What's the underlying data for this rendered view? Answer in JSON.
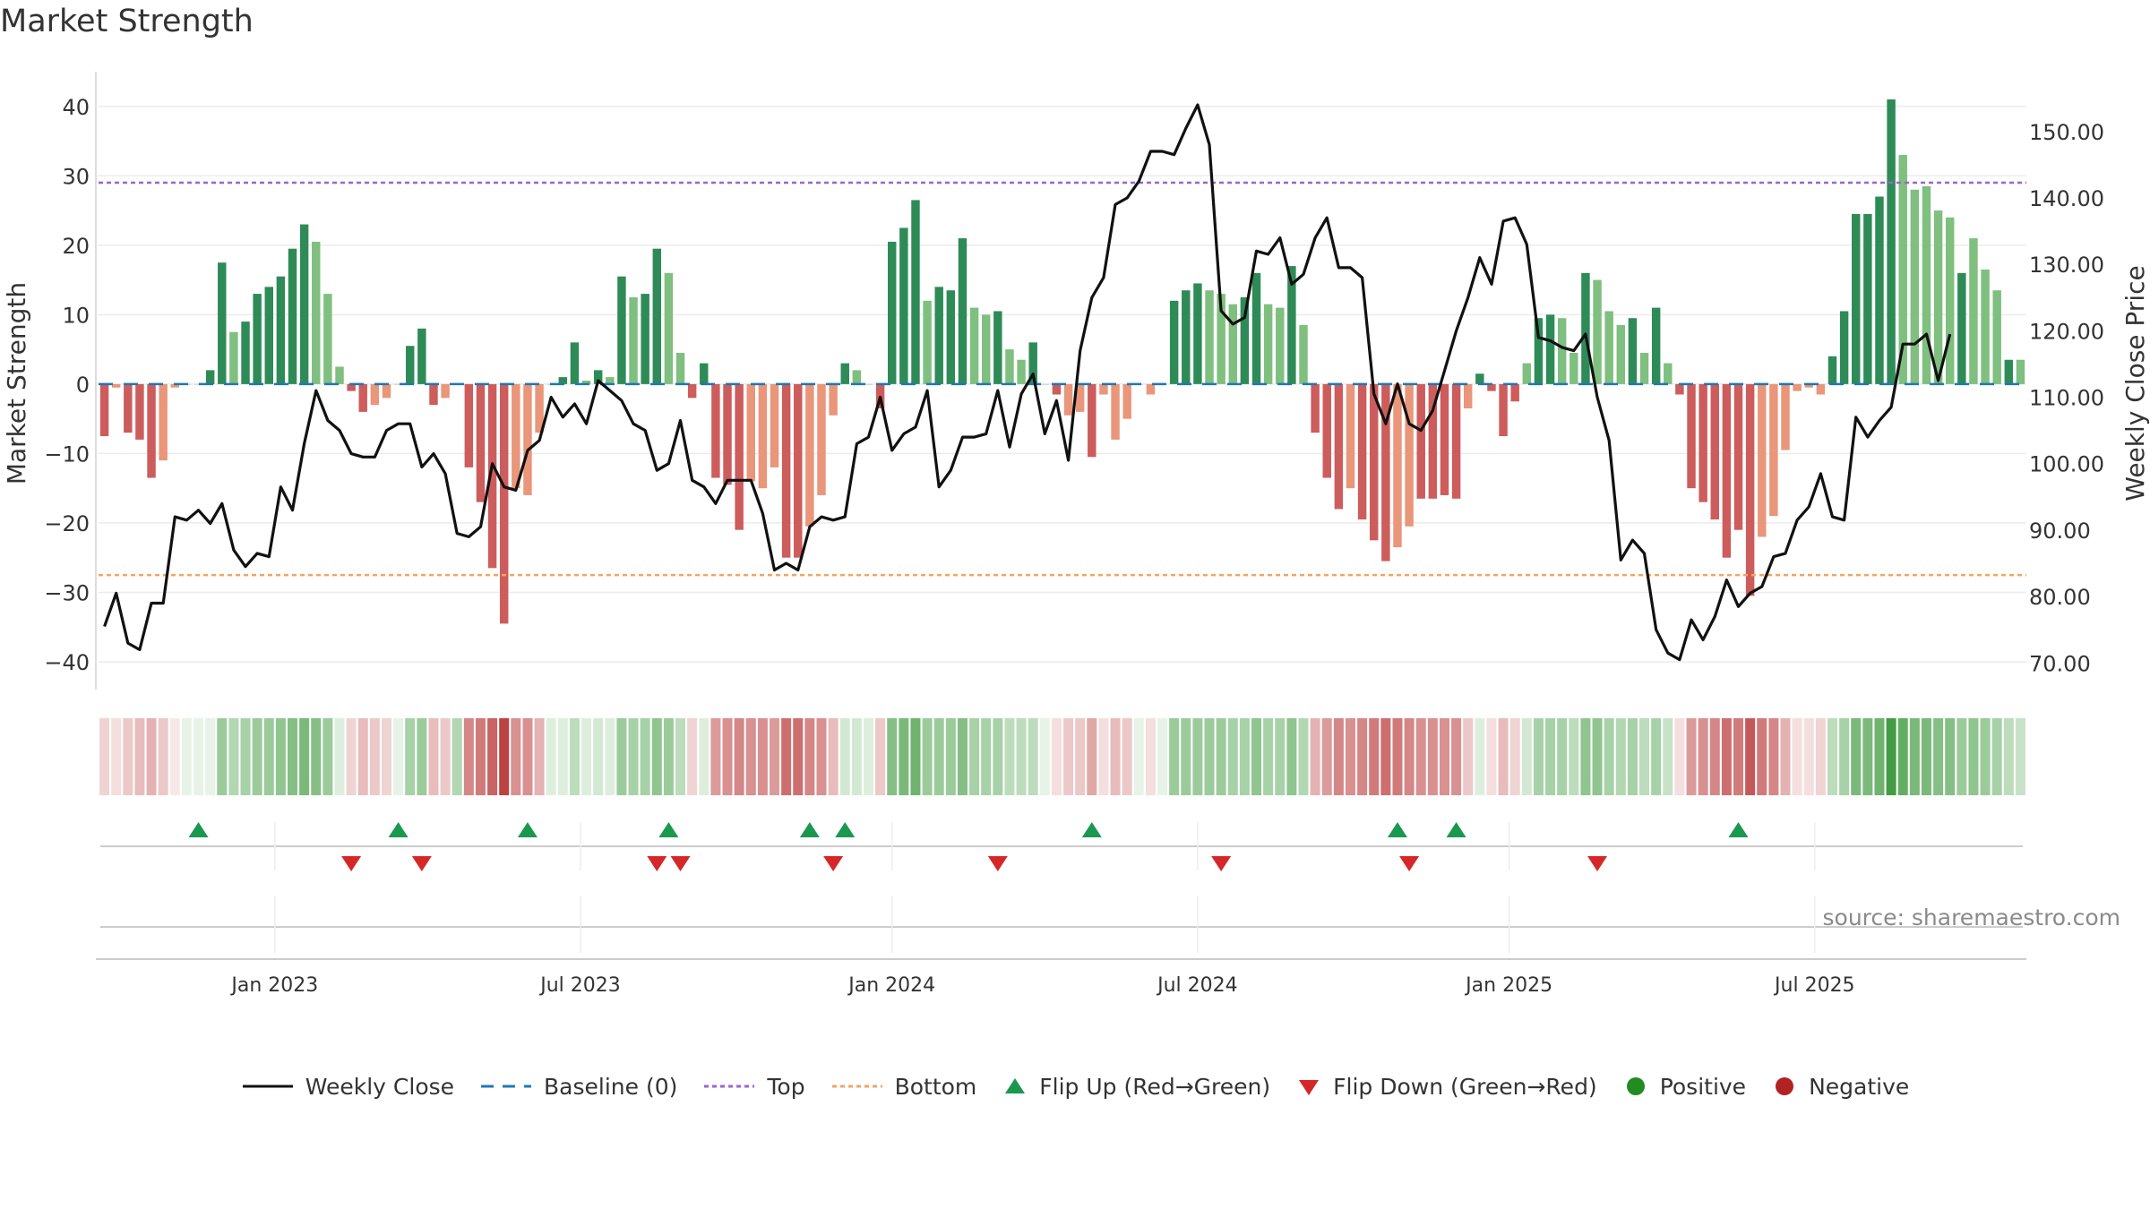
{
  "title": "Market Strength",
  "source": "source: sharemaestro.com",
  "colors": {
    "green_dark": "#2e8b57",
    "green_light": "#7fbf7f",
    "red_dark": "#cd5c5c",
    "red_light": "#e9967a",
    "top_line": "#9966cc",
    "bottom_line": "#f4a460",
    "baseline": "#1f77b4",
    "close_line": "#111111",
    "flip_up": "#1a9850",
    "flip_down": "#d62728",
    "positive": "#228b22",
    "negative": "#b22222"
  },
  "legend": [
    {
      "key": "close",
      "label": "Weekly Close"
    },
    {
      "key": "baseline",
      "label": "Baseline (0)"
    },
    {
      "key": "top",
      "label": "Top"
    },
    {
      "key": "bottom",
      "label": "Bottom"
    },
    {
      "key": "flip_up",
      "label": "Flip Up (Red→Green)"
    },
    {
      "key": "flip_down",
      "label": "Flip Down (Green→Red)"
    },
    {
      "key": "positive",
      "label": "Positive"
    },
    {
      "key": "negative",
      "label": "Negative"
    }
  ],
  "chart_data": {
    "type": "bar",
    "title": "Market Strength",
    "ylabel": "Market Strength",
    "y2label": "Weekly Close Price",
    "ylim": [
      -44,
      45
    ],
    "y2lim": [
      66,
      159
    ],
    "yticks": [
      40,
      30,
      20,
      10,
      0,
      -10,
      -20,
      -30,
      -40
    ],
    "yticklabels": [
      "40",
      "30",
      "20",
      "10",
      "0",
      "−10",
      "−20",
      "−30",
      "−40"
    ],
    "y2ticks": [
      150,
      140,
      130,
      120,
      110,
      100,
      90,
      80,
      70
    ],
    "y2ticklabels": [
      "150.00",
      "140.00",
      "130.00",
      "120.00",
      "110.00",
      "100.00",
      "90.00",
      "80.00",
      "70.00"
    ],
    "xticks": [
      {
        "label": "Jan 2023",
        "week": 15
      },
      {
        "label": "Jul 2023",
        "week": 41
      },
      {
        "label": "Jan 2024",
        "week": 67.5
      },
      {
        "label": "Jul 2024",
        "week": 93.5
      },
      {
        "label": "Jan 2025",
        "week": 120
      },
      {
        "label": "Jul 2025",
        "week": 146
      }
    ],
    "top": 29,
    "bottom": -27.5,
    "baseline": 0,
    "strength": [
      -7.5,
      -0.5,
      -7,
      -8,
      -13.5,
      -11,
      -0.5,
      0,
      0,
      2,
      17.5,
      7.5,
      9,
      13,
      14,
      15.5,
      19.5,
      23,
      20.5,
      13,
      2.5,
      -1,
      -4,
      -3,
      -2,
      0,
      5.5,
      8,
      -3,
      -2,
      0,
      -12,
      -17,
      -26.5,
      -34.5,
      -15,
      -16,
      -7,
      0,
      1,
      6,
      0.5,
      2,
      1,
      15.5,
      12.5,
      13,
      19.5,
      16,
      4.5,
      -2,
      3,
      -13.5,
      -14.5,
      -21,
      -14,
      -15,
      -12,
      -25,
      -25,
      -20.5,
      -16,
      -4.5,
      3,
      2,
      0,
      -3.5,
      20.5,
      22.5,
      26.5,
      12,
      14,
      13.5,
      21,
      11,
      10,
      10.5,
      5,
      3.5,
      6,
      0,
      -1.5,
      -4.5,
      -4,
      -10.5,
      -1.5,
      -8,
      -5,
      0,
      -1.5,
      0,
      12,
      13.5,
      14.5,
      13.5,
      13,
      11.5,
      12.5,
      16,
      11.5,
      11,
      17,
      8.5,
      -7,
      -13.5,
      -18,
      -15,
      -19.5,
      -22.5,
      -25.5,
      -23.5,
      -20.5,
      -16.5,
      -16.5,
      -16,
      -16.5,
      -3.5,
      1.5,
      -1,
      -7.5,
      -2.5,
      3,
      9.5,
      10,
      9.5,
      4.5,
      16,
      15,
      10.5,
      8.5,
      9.5,
      4.5,
      11,
      3,
      -1.5,
      -15,
      -17,
      -19.5,
      -25,
      -21,
      -30.5,
      -22,
      -19,
      -9.5,
      -1,
      -0.5,
      -1.5,
      4,
      10.5,
      24.5,
      24.5,
      27,
      41,
      33,
      28,
      28.5,
      25,
      24,
      16,
      21,
      16.5,
      13.5,
      3.5,
      3.5
    ],
    "strength_shade": [
      1,
      0,
      1,
      1,
      1,
      0,
      0,
      0,
      0,
      1,
      1,
      0,
      1,
      1,
      1,
      1,
      1,
      1,
      0,
      0,
      0,
      1,
      1,
      0,
      0,
      0,
      1,
      1,
      1,
      0,
      0,
      1,
      1,
      1,
      1,
      0,
      0,
      0,
      0,
      1,
      1,
      0,
      1,
      0,
      1,
      0,
      1,
      1,
      0,
      0,
      1,
      1,
      1,
      1,
      1,
      0,
      0,
      0,
      1,
      1,
      0,
      0,
      0,
      1,
      0,
      0,
      1,
      1,
      1,
      1,
      0,
      1,
      1,
      1,
      0,
      0,
      1,
      0,
      0,
      1,
      0,
      1,
      0,
      0,
      1,
      0,
      0,
      0,
      0,
      0,
      0,
      1,
      1,
      1,
      0,
      0,
      0,
      1,
      1,
      0,
      0,
      1,
      0,
      1,
      1,
      1,
      0,
      1,
      1,
      1,
      0,
      0,
      1,
      1,
      1,
      1,
      0,
      1,
      1,
      1,
      1,
      0,
      1,
      1,
      0,
      0,
      1,
      0,
      0,
      0,
      1,
      0,
      1,
      0,
      1,
      1,
      1,
      1,
      1,
      1,
      1,
      0,
      0,
      0,
      0,
      0,
      0,
      1,
      1,
      1,
      1,
      1,
      1,
      0,
      0,
      0,
      0,
      0,
      1,
      0,
      0,
      0,
      1,
      0
    ],
    "close": [
      75.5,
      80.5,
      73,
      72,
      79,
      79,
      92,
      91.5,
      93,
      91,
      94,
      87,
      84.5,
      86.5,
      86,
      96.5,
      93,
      103,
      111,
      106.5,
      105,
      101.5,
      101,
      101,
      105,
      106,
      106,
      99.5,
      101.5,
      98.5,
      89.5,
      89,
      90.5,
      100,
      96.5,
      96,
      102,
      103.5,
      110,
      107,
      109,
      106,
      112.5,
      111,
      109.5,
      106,
      105,
      99,
      100,
      106.5,
      97.5,
      96.5,
      94,
      97.5,
      97.5,
      97.5,
      92.5,
      84,
      85,
      84,
      90.5,
      92,
      91.5,
      92,
      103,
      104,
      110,
      102,
      104.5,
      105.5,
      111,
      96.5,
      99,
      104,
      104,
      104.5,
      111,
      102.5,
      110.5,
      113.5,
      104.5,
      109.5,
      100.5,
      117,
      125,
      128,
      139,
      140,
      142.5,
      147,
      147,
      146.5,
      150.5,
      154,
      148,
      123,
      121,
      122,
      132,
      131.5,
      134,
      127,
      128.5,
      134,
      137,
      129.5,
      129.5,
      128,
      110.5,
      106,
      112,
      106,
      105,
      108,
      114,
      120,
      125,
      131,
      127,
      136.5,
      137,
      133,
      119,
      118.5,
      117.5,
      117,
      119.5,
      110,
      103.5,
      85.5,
      88.5,
      86.5,
      75,
      71.5,
      70.5,
      76.5,
      73.5,
      77,
      82.5,
      78.5,
      80.5,
      81.5,
      86,
      86.5,
      91.5,
      93.5,
      98.5,
      92,
      91.5,
      107,
      104,
      106.5,
      108.5,
      118,
      118,
      119.5,
      112.5,
      119.5
    ],
    "heat_levels": [
      0.2,
      0.15,
      0.25,
      0.3,
      0.35,
      0.25,
      0.1,
      0.1,
      0.1,
      0.1,
      0.45,
      0.35,
      0.4,
      0.45,
      0.45,
      0.5,
      0.55,
      0.6,
      0.55,
      0.45,
      0.15,
      0.2,
      0.3,
      0.25,
      0.2,
      0.1,
      0.4,
      0.45,
      0.3,
      0.25,
      0.35,
      0.55,
      0.6,
      0.7,
      0.85,
      0.5,
      0.5,
      0.35,
      0.15,
      0.15,
      0.3,
      0.15,
      0.2,
      0.15,
      0.45,
      0.4,
      0.4,
      0.5,
      0.45,
      0.3,
      0.2,
      0.15,
      0.45,
      0.5,
      0.55,
      0.5,
      0.5,
      0.45,
      0.65,
      0.65,
      0.55,
      0.5,
      0.3,
      0.2,
      0.2,
      0.15,
      0.25,
      0.55,
      0.6,
      0.65,
      0.45,
      0.45,
      0.45,
      0.55,
      0.4,
      0.4,
      0.4,
      0.3,
      0.3,
      0.3,
      0.1,
      0.15,
      0.25,
      0.25,
      0.4,
      0.15,
      0.3,
      0.25,
      0.1,
      0.15,
      0.1,
      0.45,
      0.45,
      0.45,
      0.45,
      0.45,
      0.4,
      0.4,
      0.5,
      0.4,
      0.4,
      0.5,
      0.35,
      0.35,
      0.45,
      0.55,
      0.5,
      0.55,
      0.6,
      0.65,
      0.6,
      0.55,
      0.5,
      0.5,
      0.5,
      0.5,
      0.25,
      0.15,
      0.15,
      0.3,
      0.2,
      0.2,
      0.4,
      0.4,
      0.4,
      0.3,
      0.5,
      0.5,
      0.4,
      0.35,
      0.4,
      0.3,
      0.4,
      0.25,
      0.15,
      0.45,
      0.5,
      0.55,
      0.65,
      0.6,
      0.75,
      0.6,
      0.55,
      0.35,
      0.15,
      0.15,
      0.2,
      0.3,
      0.4,
      0.6,
      0.6,
      0.65,
      0.85,
      0.7,
      0.6,
      0.6,
      0.55,
      0.55,
      0.45,
      0.5,
      0.45,
      0.4,
      0.3,
      0.25
    ],
    "flip_up_weeks": [
      8,
      25,
      36,
      48,
      60,
      63,
      84,
      110,
      115,
      139
    ],
    "flip_down_weeks": [
      21,
      27,
      47,
      49,
      62,
      76,
      95,
      111,
      127
    ]
  }
}
